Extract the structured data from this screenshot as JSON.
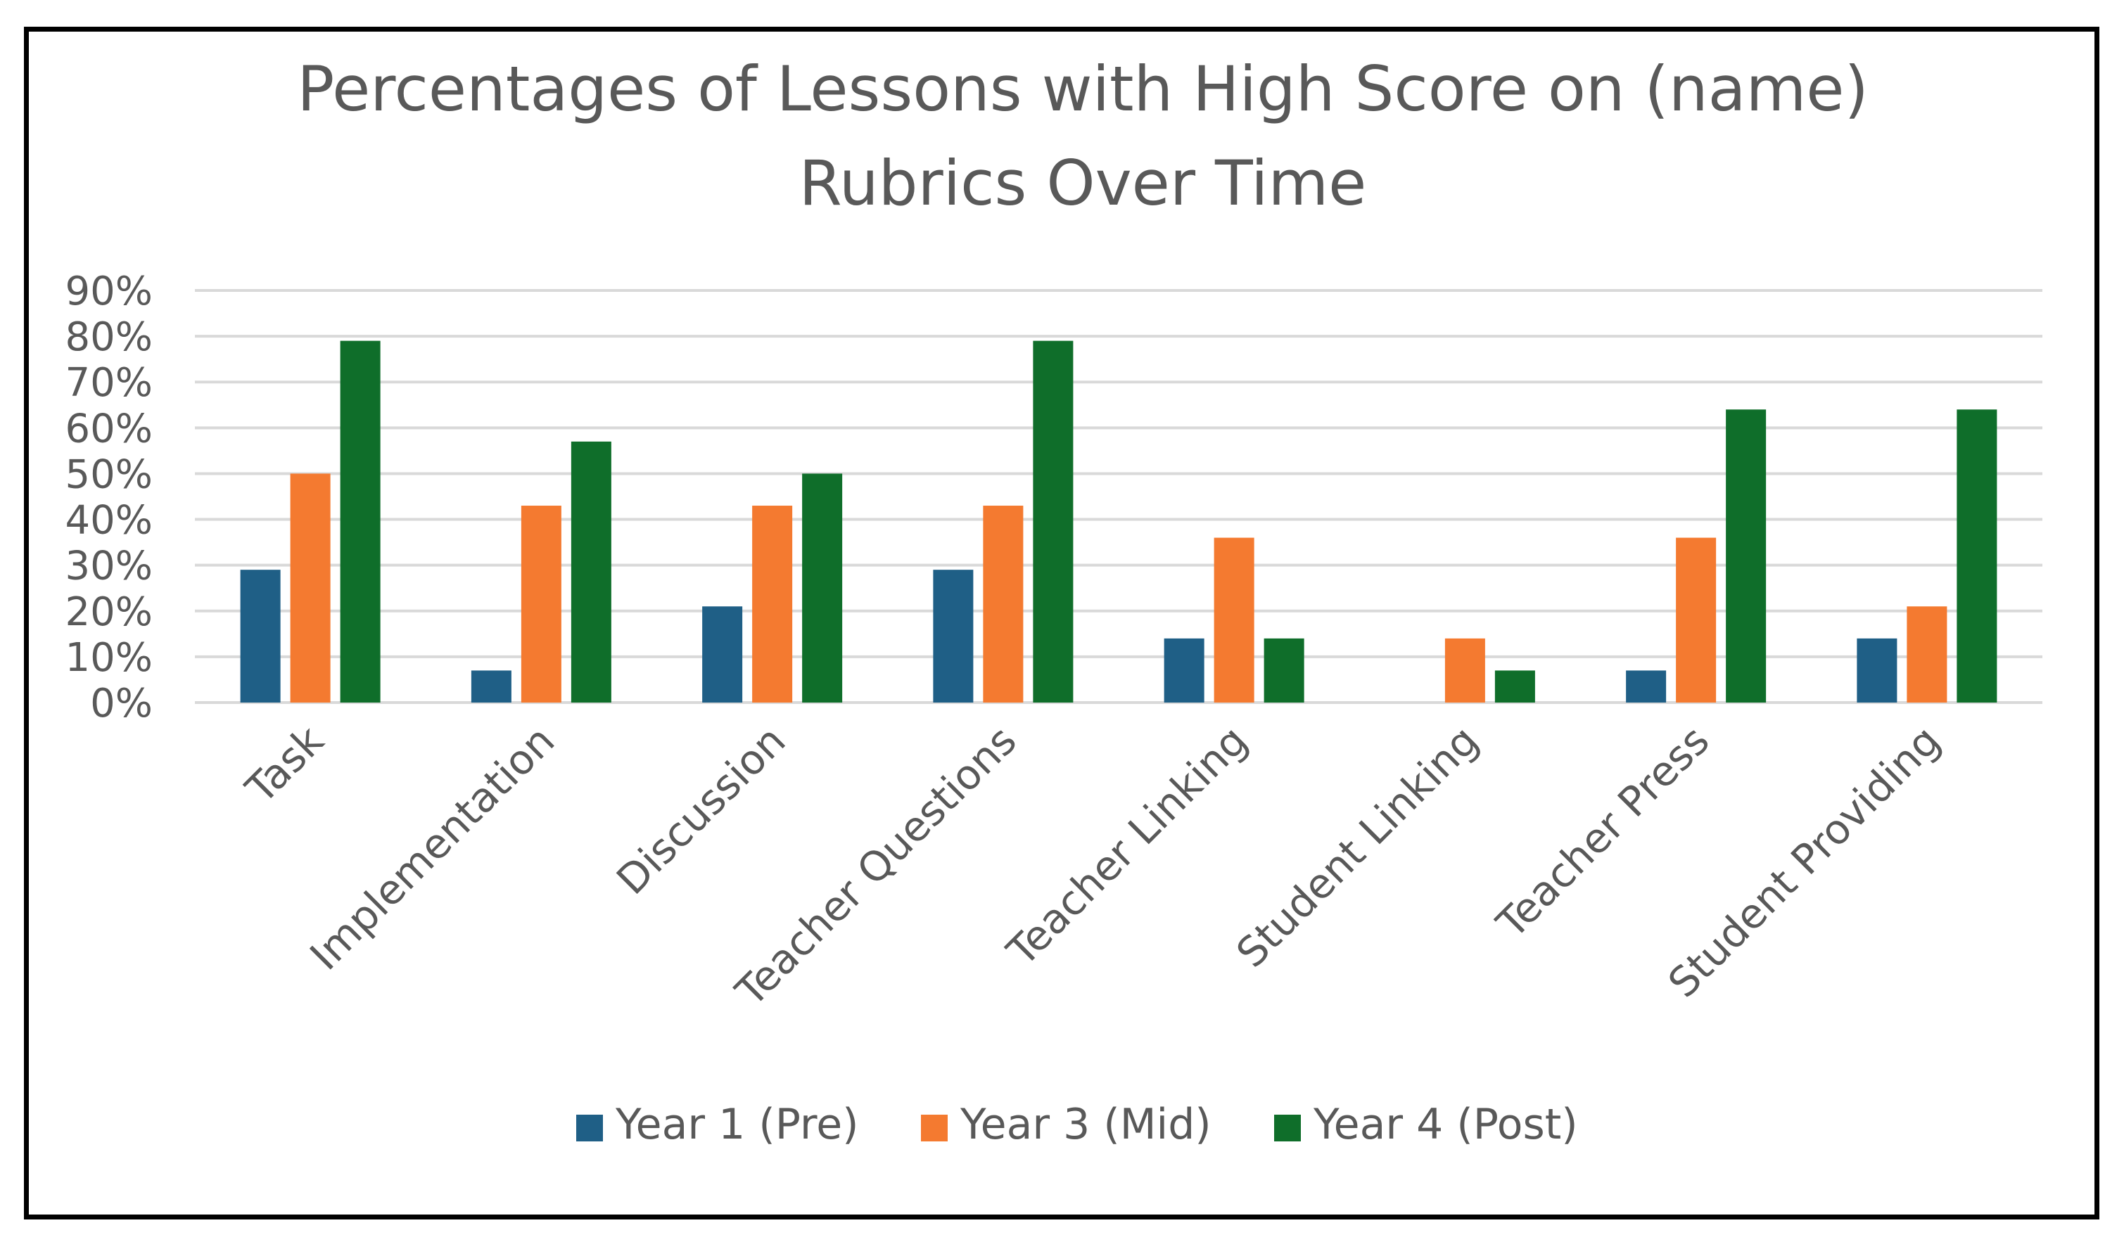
{
  "chart_data": {
    "type": "bar",
    "title": "Percentages of Lessons with High Score on (name) Rubrics Over Time",
    "title_lines": [
      "Percentages of Lessons with High Score on (name)",
      "Rubrics Over Time"
    ],
    "xlabel": "",
    "ylabel": "",
    "ylim": [
      0,
      90
    ],
    "y_ticks": [
      0,
      10,
      20,
      30,
      40,
      50,
      60,
      70,
      80,
      90
    ],
    "y_tick_labels": [
      "0%",
      "10%",
      "20%",
      "30%",
      "40%",
      "50%",
      "60%",
      "70%",
      "80%",
      "90%"
    ],
    "grid": true,
    "legend_position": "bottom",
    "categories": [
      "Task",
      "Implementation",
      "Discussion",
      "Teacher Questions",
      "Teacher Linking",
      "Student Linking",
      "Teacher Press",
      "Student Providing"
    ],
    "series": [
      {
        "name": "Year 1 (Pre)",
        "color": "#1f5f86",
        "values": [
          29,
          7,
          21,
          29,
          14,
          0,
          7,
          14
        ]
      },
      {
        "name": "Year 3 (Mid)",
        "color": "#f47a30",
        "values": [
          50,
          43,
          43,
          43,
          36,
          14,
          36,
          21
        ]
      },
      {
        "name": "Year 4 (Post)",
        "color": "#0f6e2a",
        "values": [
          79,
          57,
          50,
          79,
          14,
          7,
          64,
          64
        ]
      }
    ],
    "gridline_color": "#d9d9d9",
    "text_color": "#595959"
  }
}
